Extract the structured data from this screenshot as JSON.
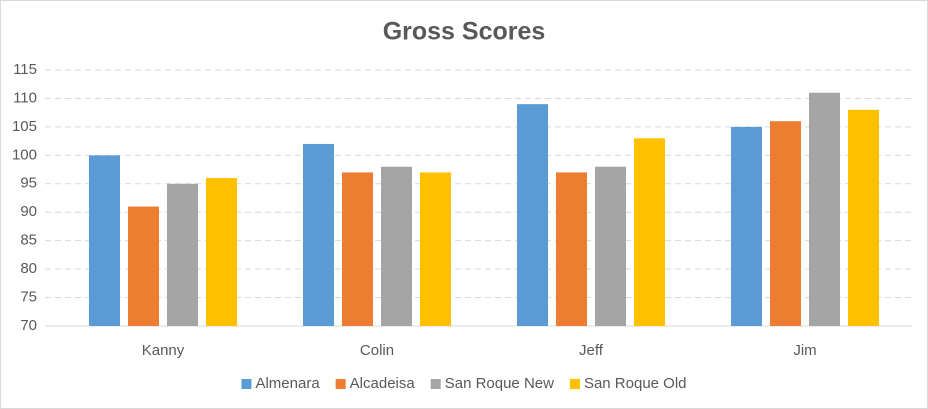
{
  "chart_data": {
    "type": "bar",
    "title": "Gross Scores",
    "categories": [
      "Kanny",
      "Colin",
      "Jeff",
      "Jim"
    ],
    "series": [
      {
        "name": "Almenara",
        "color": "#5b9bd5",
        "values": [
          100,
          102,
          109,
          105
        ]
      },
      {
        "name": "Alcadeisa",
        "color": "#ed7d31",
        "values": [
          91,
          97,
          97,
          106
        ]
      },
      {
        "name": "San Roque New",
        "color": "#a5a5a5",
        "values": [
          95,
          98,
          98,
          111
        ]
      },
      {
        "name": "San Roque Old",
        "color": "#ffc000",
        "values": [
          96,
          97,
          103,
          108
        ]
      }
    ],
    "ylim": [
      70,
      115
    ],
    "yticks": [
      70,
      75,
      80,
      85,
      90,
      95,
      100,
      105,
      110,
      115
    ],
    "grid": true,
    "legend": "bottom"
  }
}
